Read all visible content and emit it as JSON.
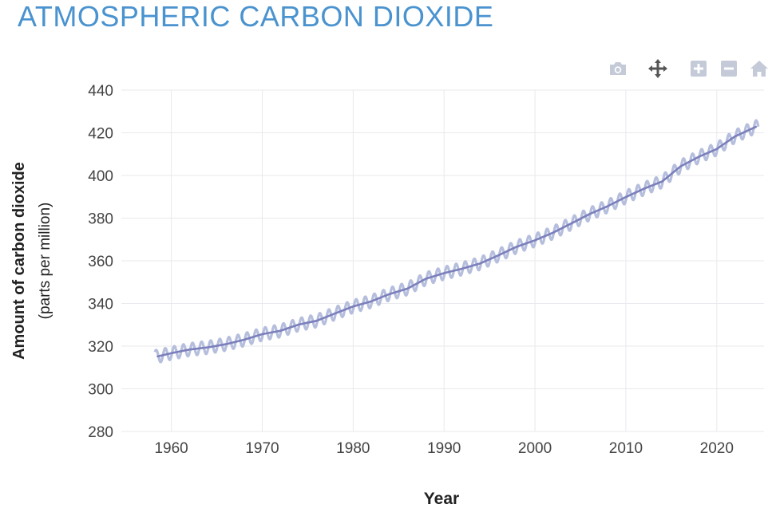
{
  "title": "ATMOSPHERIC CARBON DIOXIDE",
  "colors": {
    "title": "#4a93cf",
    "trend": "#7b7fbb",
    "seasonal": "#b5bedc",
    "grid": "#e9e9ee",
    "tick_text": "#444444",
    "axis_title": "#222222",
    "modebar_icon": "#c4cad8",
    "modebar_active": "#555555"
  },
  "modebar": {
    "buttons": [
      {
        "name": "camera-icon",
        "active": false
      },
      {
        "name": "pan-icon",
        "active": true
      },
      {
        "name": "zoom-in-icon",
        "active": false
      },
      {
        "name": "zoom-out-icon",
        "active": false
      },
      {
        "name": "home-icon",
        "active": false
      }
    ]
  },
  "chart_data": {
    "type": "line",
    "xlabel": "Year",
    "ylabel": "Amount of carbon dioxide",
    "ylabel_sub": "(parts per million)",
    "xlim": [
      1954.5,
      2025.2
    ],
    "ylim": [
      280,
      440
    ],
    "xticks": [
      1960,
      1970,
      1980,
      1990,
      2000,
      2010,
      2020
    ],
    "yticks": [
      280,
      300,
      320,
      340,
      360,
      380,
      400,
      420,
      440
    ],
    "grid": true,
    "series": [
      {
        "id": "trend",
        "x": [
          1958.5,
          1960,
          1962,
          1964,
          1966,
          1968,
          1970,
          1972,
          1974,
          1976,
          1978,
          1980,
          1982,
          1984,
          1986,
          1988,
          1990,
          1992,
          1994,
          1996,
          1998,
          2000,
          2002,
          2004,
          2006,
          2008,
          2010,
          2012,
          2014,
          2016,
          2018,
          2020,
          2022,
          2024.3
        ],
        "y": [
          315.2,
          316.7,
          318.4,
          319.4,
          320.9,
          323.0,
          325.6,
          327.2,
          330.1,
          331.9,
          335.3,
          338.6,
          341.0,
          344.4,
          347.0,
          351.6,
          354.2,
          356.3,
          358.8,
          362.6,
          366.6,
          369.6,
          373.2,
          377.5,
          381.9,
          385.6,
          389.9,
          393.8,
          397.2,
          404.2,
          408.7,
          412.4,
          418.3,
          422.8
        ]
      },
      {
        "id": "seasonal",
        "x_start": 1958.2,
        "x_end": 2024.6,
        "amplitude": 3.0
      }
    ]
  }
}
